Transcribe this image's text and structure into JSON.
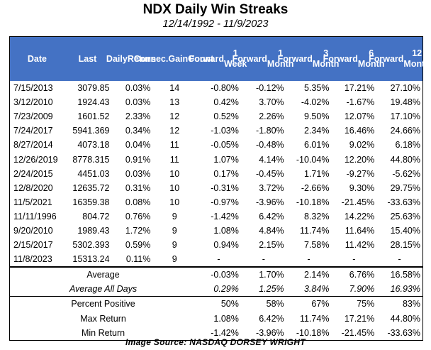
{
  "title": "NDX Daily Win Streaks",
  "subtitle": "12/14/1992 - 11/9/2023",
  "headers": [
    [
      "Date"
    ],
    [
      "Last"
    ],
    [
      "Daily",
      "Return"
    ],
    [
      "Consec.",
      "Gain",
      "Count"
    ],
    [
      "Forward",
      "1 Week"
    ],
    [
      "Forward",
      "1 Month"
    ],
    [
      "Forward",
      "3 Month"
    ],
    [
      "Forward",
      "6 Month"
    ],
    [
      "Forward",
      "12 Month"
    ]
  ],
  "rows": [
    [
      "7/15/2013",
      "3079.85",
      "0.03%",
      "14",
      "-0.80%",
      "-0.12%",
      "5.35%",
      "17.21%",
      "27.10%"
    ],
    [
      "3/12/2010",
      "1924.43",
      "0.03%",
      "13",
      "0.42%",
      "3.70%",
      "-4.02%",
      "-1.67%",
      "19.48%"
    ],
    [
      "7/23/2009",
      "1601.52",
      "2.33%",
      "12",
      "0.52%",
      "2.26%",
      "9.50%",
      "12.07%",
      "17.10%"
    ],
    [
      "7/24/2017",
      "5941.369",
      "0.34%",
      "12",
      "-1.03%",
      "-1.80%",
      "2.34%",
      "16.46%",
      "24.66%"
    ],
    [
      "8/27/2014",
      "4073.18",
      "0.04%",
      "11",
      "-0.05%",
      "-0.48%",
      "6.01%",
      "9.02%",
      "6.18%"
    ],
    [
      "12/26/2019",
      "8778.315",
      "0.91%",
      "11",
      "1.07%",
      "4.14%",
      "-10.04%",
      "12.20%",
      "44.80%"
    ],
    [
      "2/24/2015",
      "4451.03",
      "0.03%",
      "10",
      "0.17%",
      "-0.45%",
      "1.71%",
      "-9.27%",
      "-5.62%"
    ],
    [
      "12/8/2020",
      "12635.72",
      "0.31%",
      "10",
      "-0.31%",
      "3.72%",
      "-2.66%",
      "9.30%",
      "29.75%"
    ],
    [
      "11/5/2021",
      "16359.38",
      "0.08%",
      "10",
      "-0.97%",
      "-3.96%",
      "-10.18%",
      "-21.45%",
      "-33.63%"
    ],
    [
      "11/11/1996",
      "804.72",
      "0.76%",
      "9",
      "-1.42%",
      "6.42%",
      "8.32%",
      "14.22%",
      "25.63%"
    ],
    [
      "9/20/2010",
      "1989.43",
      "1.72%",
      "9",
      "1.08%",
      "4.84%",
      "11.74%",
      "11.64%",
      "15.40%"
    ],
    [
      "2/15/2017",
      "5302.393",
      "0.59%",
      "9",
      "0.94%",
      "2.15%",
      "7.58%",
      "11.42%",
      "28.15%"
    ],
    [
      "11/8/2023",
      "15313.24",
      "0.11%",
      "9",
      "-",
      "-",
      "-",
      "-",
      "-"
    ]
  ],
  "summary": [
    {
      "label": "Average",
      "values": [
        "-0.03%",
        "1.70%",
        "2.14%",
        "6.76%",
        "16.58%"
      ],
      "italic": false
    },
    {
      "label": "Average All Days",
      "values": [
        "0.29%",
        "1.25%",
        "3.84%",
        "7.90%",
        "16.93%"
      ],
      "italic": true
    },
    {
      "label": "Percent Positive",
      "values": [
        "50%",
        "58%",
        "67%",
        "75%",
        "83%"
      ],
      "italic": false
    },
    {
      "label": "Max Return",
      "values": [
        "1.08%",
        "6.42%",
        "11.74%",
        "17.21%",
        "44.80%"
      ],
      "italic": false
    },
    {
      "label": "Min Return",
      "values": [
        "-1.42%",
        "-3.96%",
        "-10.18%",
        "-21.45%",
        "-33.63%"
      ],
      "italic": false
    }
  ],
  "source": "Image Source: NASDAQ DORSEY WRIGHT"
}
